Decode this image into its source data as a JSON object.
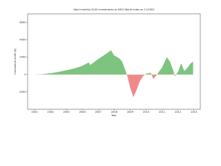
{
  "chart_data": {
    "type": "area",
    "title": "Start monthly $100 investments to MSCI World index on 11/2002",
    "xlabel": "Year",
    "ylabel": "Cumulative profit ($)",
    "x": [
      2002.85,
      2003.0,
      2003.5,
      2004.0,
      2004.5,
      2005.0,
      2005.5,
      2006.0,
      2006.4,
      2006.5,
      2007.0,
      2007.5,
      2007.8,
      2008.0,
      2008.3,
      2008.5,
      2008.8,
      2009.0,
      2009.2,
      2009.4,
      2009.6,
      2009.8,
      2010.0,
      2010.3,
      2010.45,
      2010.6,
      2010.8,
      2011.0,
      2011.3,
      2011.5,
      2011.7,
      2011.8,
      2012.0,
      2012.2,
      2012.4,
      2012.6,
      2012.8,
      2012.95
    ],
    "values": [
      0,
      0,
      50,
      150,
      300,
      500,
      700,
      1000,
      1400,
      1100,
      1800,
      2400,
      2800,
      2200,
      1900,
      1500,
      0,
      -1500,
      -2600,
      -1800,
      -800,
      -200,
      100,
      200,
      -500,
      -200,
      300,
      800,
      2000,
      1500,
      500,
      -200,
      300,
      1300,
      400,
      800,
      1300,
      1500
    ],
    "color_positive": "#7cc47f",
    "color_negative": "#f08a8a",
    "xlim": [
      2002.57,
      2013.4
    ],
    "ylim": [
      -4000,
      7000
    ],
    "xticks": [
      2003,
      2004,
      2005,
      2006,
      2007,
      2008,
      2009,
      2010,
      2011,
      2012,
      2013
    ],
    "yticks": [
      -2000,
      0,
      2000,
      4000,
      6000
    ]
  }
}
